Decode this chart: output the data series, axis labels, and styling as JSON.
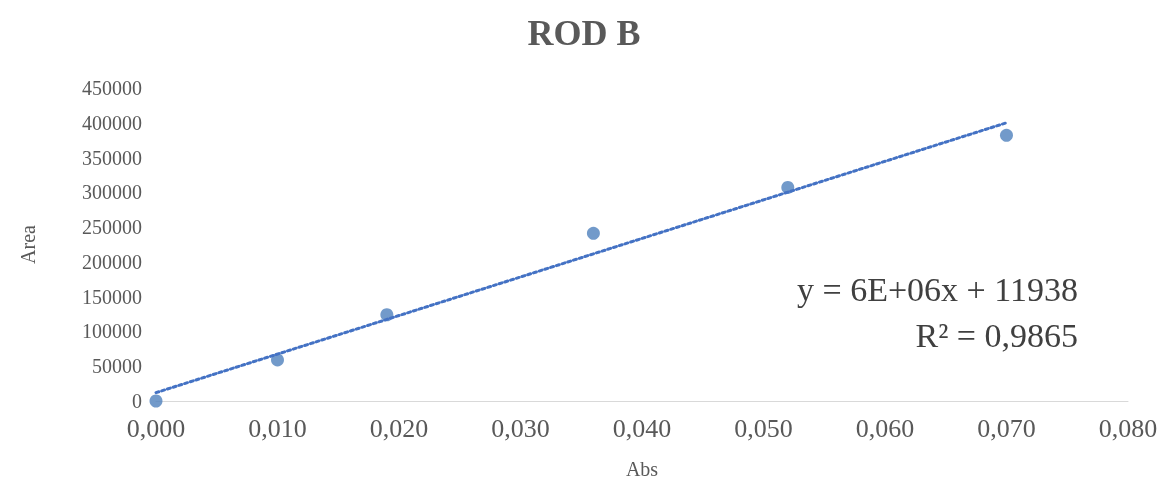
{
  "chart_data": {
    "type": "scatter",
    "title": "ROD B",
    "xlabel": "Abs",
    "ylabel": "Area",
    "x": [
      0,
      0.01,
      0.019,
      0.036,
      0.052,
      0.07
    ],
    "series": [
      {
        "color": "#4f81bd",
        "marker": "circle",
        "values": [
          0,
          59000,
          124000,
          241000,
          307000,
          382000
        ]
      },
      {
        "type": "line",
        "color": "#4472c4",
        "line_style": "dotted",
        "marker": "none",
        "x": [
          0,
          0.07
        ],
        "values": [
          12000,
          400000
        ]
      }
    ],
    "xlim": [
      0,
      0.08
    ],
    "xticks": [
      {
        "value": 0,
        "label": "0,000"
      },
      {
        "value": 0.01,
        "label": "0,010"
      },
      {
        "value": 0.02,
        "label": "0,020"
      },
      {
        "value": 0.03,
        "label": "0,030"
      },
      {
        "value": 0.04,
        "label": "0,040"
      },
      {
        "value": 0.05,
        "label": "0,050"
      },
      {
        "value": 0.06,
        "label": "0,060"
      },
      {
        "value": 0.07,
        "label": "0,070"
      },
      {
        "value": 0.08,
        "label": "0,080"
      }
    ],
    "ylim": [
      0,
      450000
    ],
    "yticks": [
      0,
      50000,
      100000,
      150000,
      200000,
      250000,
      300000,
      350000,
      400000,
      450000
    ],
    "grid": false,
    "annotations": [
      "y = 6E+06x + 11938",
      "R² = 0,9865"
    ]
  }
}
